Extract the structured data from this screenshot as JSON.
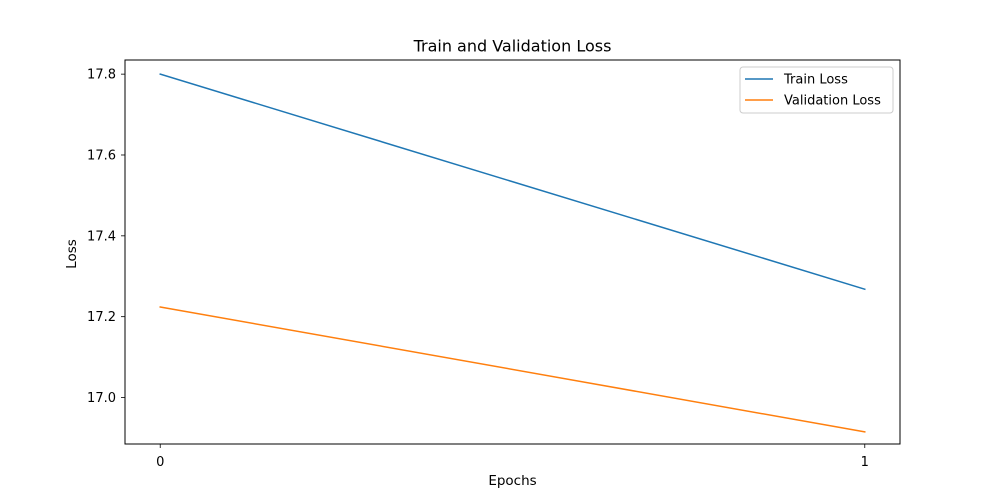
{
  "chart_data": {
    "type": "line",
    "title": "Train and Validation Loss",
    "xlabel": "Epochs",
    "ylabel": "Loss",
    "x": [
      0,
      1
    ],
    "x_ticks": [
      0,
      1
    ],
    "y_ticks": [
      17.0,
      17.2,
      17.4,
      17.6,
      17.8
    ],
    "xlim": [
      -0.05,
      1.05
    ],
    "ylim": [
      16.885,
      17.835
    ],
    "grid": false,
    "legend_position": "top-right",
    "series": [
      {
        "name": "Train Loss",
        "values": [
          17.8,
          17.268
        ],
        "color": "#1f77b4"
      },
      {
        "name": "Validation Loss",
        "values": [
          17.224,
          16.915
        ],
        "color": "#ff7f0e"
      }
    ]
  }
}
